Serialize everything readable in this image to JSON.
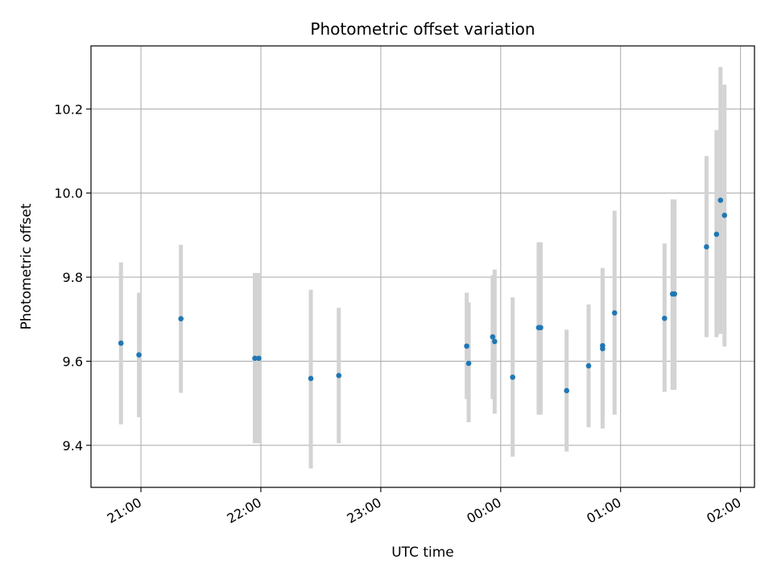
{
  "chart_data": {
    "type": "scatter",
    "title": "Photometric offset variation",
    "xlabel": "UTC time",
    "ylabel": "Photometric offset",
    "xlim": [
      "20:35",
      "02:07"
    ],
    "ylim": [
      9.3,
      10.35
    ],
    "x_ticks": [
      "21:00",
      "22:00",
      "23:00",
      "00:00",
      "01:00",
      "02:00"
    ],
    "y_ticks": [
      9.4,
      9.6,
      9.8,
      10.0,
      10.2
    ],
    "y_tick_labels": [
      "9.4",
      "9.6",
      "9.8",
      "10.0",
      "10.2"
    ],
    "grid": true,
    "point_color": "#1f77b4",
    "errorbar_color": "#d3d3d3",
    "points": [
      {
        "time": "20:50",
        "value": 9.643,
        "low": 9.45,
        "high": 9.835
      },
      {
        "time": "20:59",
        "value": 9.615,
        "low": 9.467,
        "high": 9.763
      },
      {
        "time": "21:20",
        "value": 9.701,
        "low": 9.525,
        "high": 9.877
      },
      {
        "time": "21:57",
        "value": 9.607,
        "low": 9.405,
        "high": 9.81
      },
      {
        "time": "21:59",
        "value": 9.607,
        "low": 9.405,
        "high": 9.81
      },
      {
        "time": "22:25",
        "value": 9.559,
        "low": 9.345,
        "high": 9.77
      },
      {
        "time": "22:39",
        "value": 9.566,
        "low": 9.405,
        "high": 9.727
      },
      {
        "time": "23:43",
        "value": 9.636,
        "low": 9.51,
        "high": 9.763
      },
      {
        "time": "23:44",
        "value": 9.595,
        "low": 9.455,
        "high": 9.74
      },
      {
        "time": "23:56",
        "value": 9.658,
        "low": 9.51,
        "high": 9.805
      },
      {
        "time": "23:57",
        "value": 9.647,
        "low": 9.475,
        "high": 9.818
      },
      {
        "time": "00:06",
        "value": 9.562,
        "low": 9.373,
        "high": 9.752
      },
      {
        "time": "00:19",
        "value": 9.68,
        "low": 9.473,
        "high": 9.883
      },
      {
        "time": "00:20",
        "value": 9.68,
        "low": 9.473,
        "high": 9.883
      },
      {
        "time": "00:33",
        "value": 9.53,
        "low": 9.385,
        "high": 9.675
      },
      {
        "time": "00:44",
        "value": 9.589,
        "low": 9.443,
        "high": 9.735
      },
      {
        "time": "00:51",
        "value": 9.63,
        "low": 9.44,
        "high": 9.822
      },
      {
        "time": "00:51",
        "value": 9.637,
        "low": 9.473,
        "high": 9.8
      },
      {
        "time": "00:57",
        "value": 9.715,
        "low": 9.473,
        "high": 9.958
      },
      {
        "time": "01:22",
        "value": 9.702,
        "low": 9.527,
        "high": 9.88
      },
      {
        "time": "01:26",
        "value": 9.76,
        "low": 9.532,
        "high": 9.985
      },
      {
        "time": "01:27",
        "value": 9.76,
        "low": 9.532,
        "high": 9.985
      },
      {
        "time": "01:43",
        "value": 9.872,
        "low": 9.657,
        "high": 10.088
      },
      {
        "time": "01:48",
        "value": 9.902,
        "low": 9.657,
        "high": 10.15
      },
      {
        "time": "01:50",
        "value": 9.983,
        "low": 9.665,
        "high": 10.3
      },
      {
        "time": "01:52",
        "value": 9.947,
        "low": 9.635,
        "high": 10.258
      }
    ]
  }
}
